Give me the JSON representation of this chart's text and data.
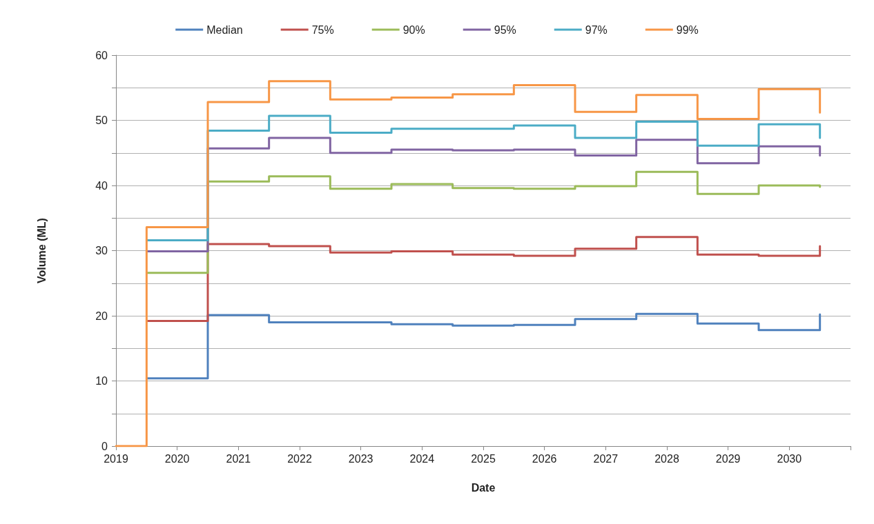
{
  "chart_data": {
    "type": "step",
    "xlabel": "Date",
    "ylabel": "Volume (ML)",
    "x": [
      2019,
      2019.5,
      2020.5,
      2021.5,
      2022.5,
      2023.5,
      2024.5,
      2025.5,
      2026.5,
      2027.5,
      2028.5,
      2029.5,
      2030.5
    ],
    "series": [
      {
        "name": "Median",
        "color": "#4f81bd",
        "values": [
          null,
          10.4,
          20.1,
          19.0,
          19.0,
          18.7,
          18.5,
          18.6,
          19.5,
          20.3,
          18.8,
          17.8,
          20.2
        ]
      },
      {
        "name": "75%",
        "color": "#c0504d",
        "values": [
          null,
          19.2,
          31.0,
          30.7,
          29.7,
          29.9,
          29.4,
          29.2,
          30.3,
          32.1,
          29.4,
          29.2,
          30.7
        ]
      },
      {
        "name": "90%",
        "color": "#9bbb59",
        "values": [
          null,
          26.6,
          40.6,
          41.4,
          39.5,
          40.2,
          39.6,
          39.5,
          39.9,
          42.1,
          38.7,
          40.0,
          39.8
        ]
      },
      {
        "name": "95%",
        "color": "#8064a2",
        "values": [
          null,
          29.9,
          45.7,
          47.3,
          45.0,
          45.5,
          45.4,
          45.5,
          44.6,
          47.0,
          43.4,
          46.0,
          44.6
        ]
      },
      {
        "name": "97%",
        "color": "#4bacc6",
        "values": [
          null,
          31.6,
          48.4,
          50.7,
          48.1,
          48.7,
          48.7,
          49.2,
          47.3,
          49.8,
          46.1,
          49.4,
          47.3
        ]
      },
      {
        "name": "99%",
        "color": "#f79646",
        "values": [
          0,
          33.6,
          52.8,
          56.0,
          53.2,
          53.5,
          54.0,
          55.4,
          51.3,
          53.9,
          50.2,
          54.8,
          51.2
        ]
      }
    ],
    "xlim": [
      2019,
      2031
    ],
    "xticks": [
      2019,
      2020,
      2021,
      2022,
      2023,
      2024,
      2025,
      2026,
      2027,
      2028,
      2029,
      2030,
      {
        "value": 2031,
        "label": null
      }
    ],
    "ylim": [
      0,
      60
    ],
    "yticks": [
      0,
      {
        "value": 5,
        "label": null
      },
      10,
      {
        "value": 15,
        "label": null
      },
      20,
      {
        "value": 25,
        "label": null
      },
      30,
      {
        "value": 35,
        "label": null
      },
      40,
      {
        "value": 45,
        "label": null
      },
      50,
      {
        "value": 55,
        "label": null
      },
      60
    ],
    "grid": "y",
    "legend": "top",
    "marker": "none",
    "line_style": "solid"
  }
}
